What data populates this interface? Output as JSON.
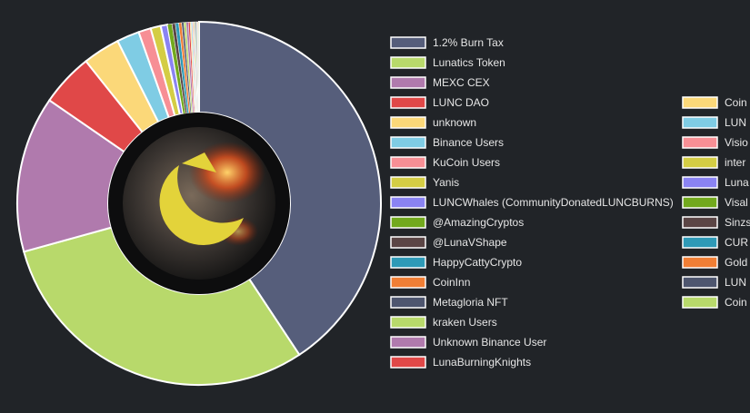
{
  "chart_data": {
    "type": "doughnut",
    "categories": [
      "1.2% Burn Tax",
      "Lunatics Token",
      "MEXC CEX",
      "LUNC DAO",
      "unknown",
      "Binance Users",
      "KuCoin Users",
      "Yanis",
      "LUNCWhales (CommunityDonatedLUNCBURNS)",
      "@AmazingCryptos",
      "@LunaVShape",
      "HappyCattyCrypto",
      "CoinInn",
      "Metagloria NFT",
      "kraken Users",
      "Unknown Binance User",
      "LunaBurningKnights",
      "Coin",
      "LUN",
      "Visio",
      "inter",
      "Luna",
      "Visal",
      "Sinzs",
      "CUR",
      "Gold",
      "LUN",
      "Coin"
    ],
    "values": [
      40.7,
      30,
      13.9,
      4.7,
      3.3,
      2.0,
      1.1,
      0.9,
      0.6,
      0.4,
      0.3,
      0.3,
      0.25,
      0.2,
      0.2,
      0.2,
      0.15,
      0.1,
      0.1,
      0.08,
      0.08,
      0.07,
      0.07,
      0.07,
      0.06,
      0.06,
      0.05,
      0.05
    ],
    "colors": [
      "#565e7b",
      "#b8d96b",
      "#b07aad",
      "#e04848",
      "#fbd879",
      "#7fcce4",
      "#f78f95",
      "#d4cd44",
      "#8a83f2",
      "#72a91d",
      "#5b4545",
      "#2e9ab7",
      "#f07e35",
      "#4e566f",
      "#b8d96b",
      "#b07aad",
      "#e04848",
      "#fbd879",
      "#7fcce4",
      "#f78f95",
      "#d4cd44",
      "#8a83f2",
      "#72a91d",
      "#5b4545",
      "#2e9ab7",
      "#f07e35",
      "#4e566f",
      "#b8d96b"
    ]
  }
}
